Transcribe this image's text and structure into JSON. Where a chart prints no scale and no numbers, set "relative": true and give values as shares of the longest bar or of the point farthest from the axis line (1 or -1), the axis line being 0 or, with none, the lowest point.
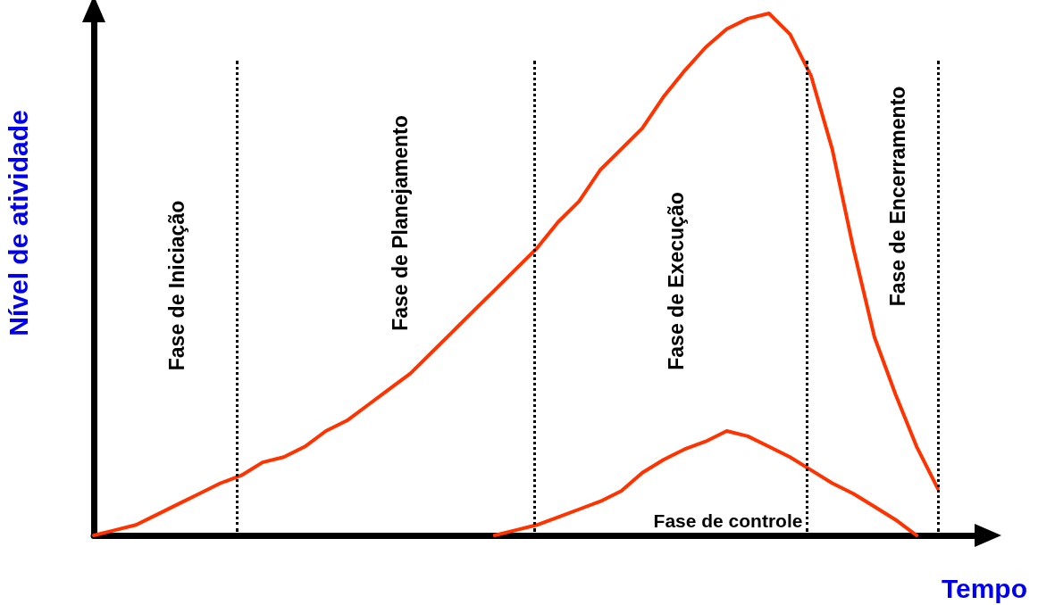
{
  "chart_data": {
    "type": "line",
    "relative": true,
    "xlabel": "Tempo",
    "ylabel": "Nível de atividade",
    "grid": false,
    "marker": "none",
    "line_style": "solid",
    "categories": [
      null,
      null,
      null,
      null,
      null,
      null,
      null,
      null,
      null,
      null,
      null,
      null,
      null,
      null,
      null,
      null,
      null,
      null,
      null,
      null,
      null,
      null,
      null,
      null,
      null,
      null,
      null,
      null,
      null,
      null,
      null,
      null,
      null,
      null,
      null,
      null,
      null,
      null,
      null,
      null,
      null,
      null,
      null
    ],
    "series": [
      {
        "color": "#ff3300",
        "values": [
          0,
          0.01,
          0.02,
          0.04,
          0.06,
          0.08,
          0.1,
          0.115,
          0.14,
          0.15,
          0.17,
          0.2,
          0.22,
          0.25,
          0.28,
          0.31,
          0.35,
          0.39,
          0.43,
          0.47,
          0.51,
          0.55,
          0.6,
          0.64,
          0.7,
          0.74,
          0.78,
          0.84,
          0.89,
          0.935,
          0.97,
          0.99,
          1,
          0.96,
          0.88,
          0.74,
          0.55,
          0.38,
          0.27,
          0.17,
          0.09,
          null,
          null
        ]
      },
      {
        "color": "#ff3300",
        "values": [
          null,
          null,
          null,
          null,
          null,
          null,
          null,
          null,
          null,
          null,
          null,
          null,
          null,
          null,
          null,
          null,
          null,
          null,
          null,
          0,
          0.01,
          0.02,
          0.035,
          0.05,
          0.065,
          0.085,
          0.12,
          0.145,
          0.165,
          0.18,
          0.2,
          0.19,
          0.17,
          0.15,
          0.125,
          0.1,
          0.08,
          0.055,
          0.03,
          0,
          null,
          null,
          null
        ]
      }
    ],
    "annotations": [
      "Fase de Iniciação",
      "Fase de Planejamento",
      "Fase de Execução",
      "Fase de Encerramento",
      "Fase de controle"
    ]
  }
}
